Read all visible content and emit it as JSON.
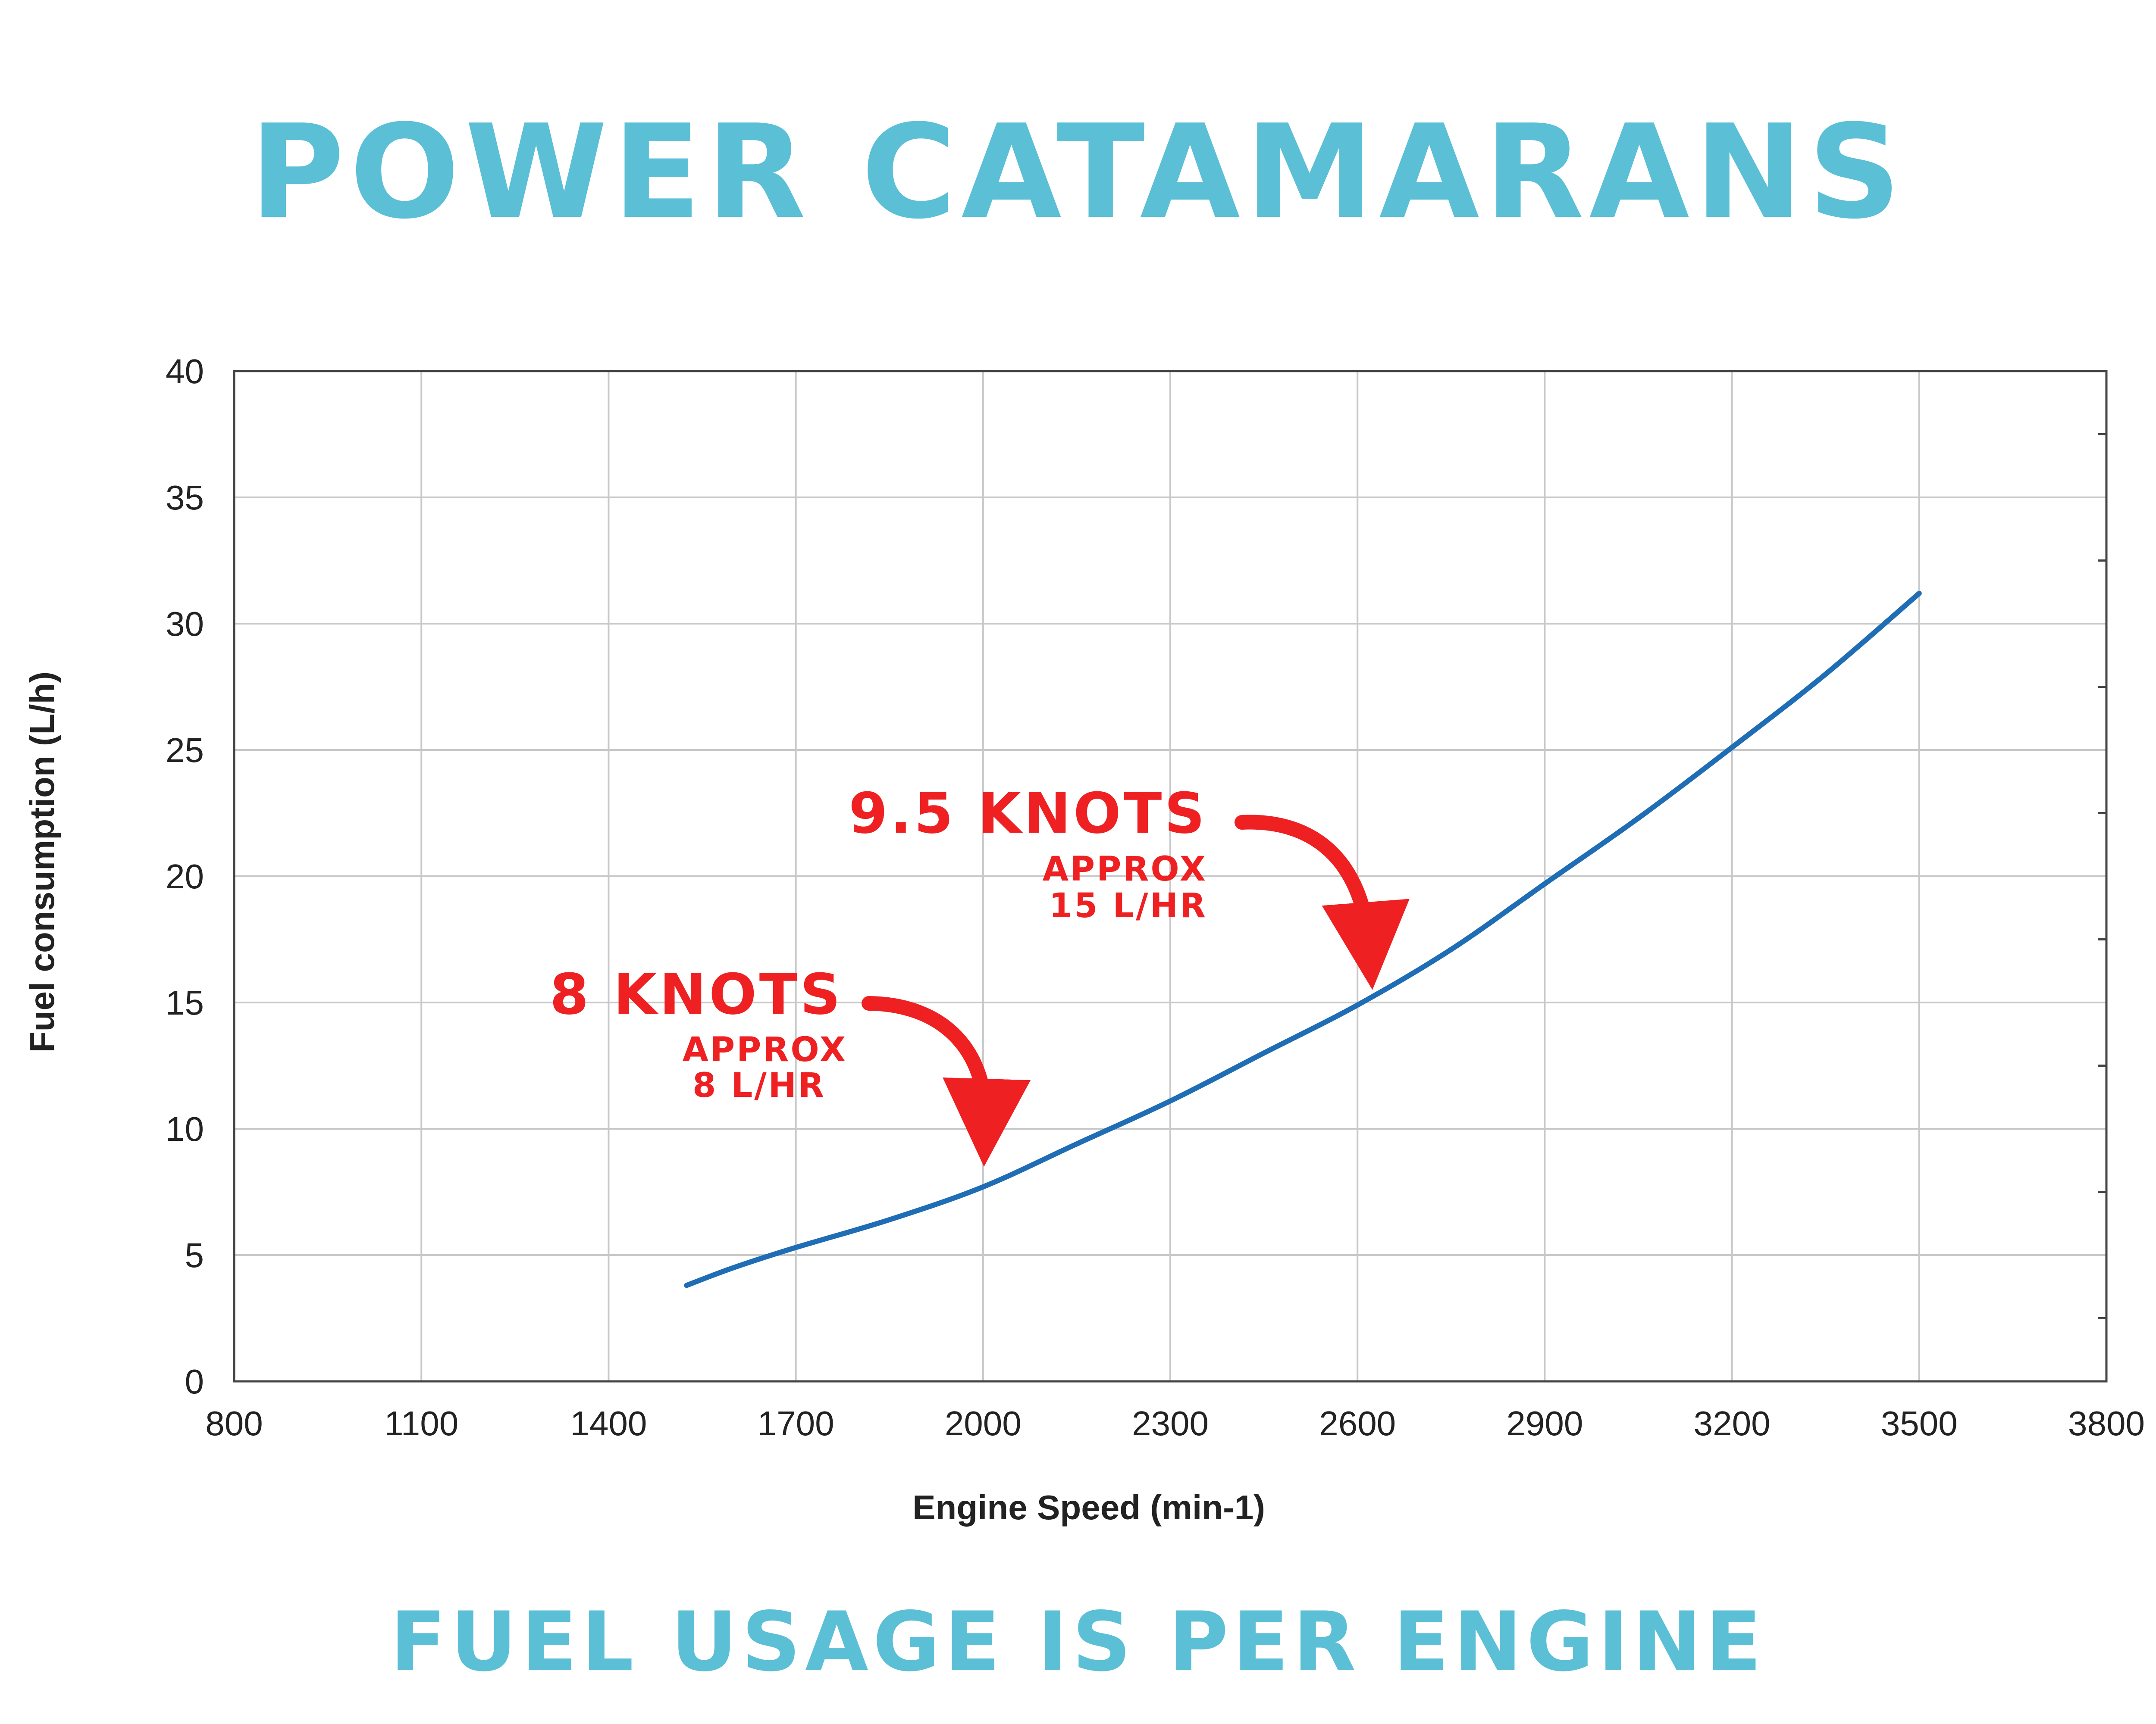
{
  "header": {
    "title": "POWER CATAMARANS"
  },
  "footer": {
    "text": "FUEL USAGE IS PER ENGINE"
  },
  "colors": {
    "title": "#5bbfd6",
    "line": "#1f6db5",
    "annotation": "#ee2022",
    "grid": "#c8c8c8"
  },
  "chart_data": {
    "type": "line",
    "title": "",
    "xlabel": "Engine Speed (min-1)",
    "ylabel": "Fuel consumption (L/h)",
    "xlim": [
      800,
      3800
    ],
    "ylim": [
      0,
      40
    ],
    "x_ticks": [
      800,
      1100,
      1400,
      1700,
      2000,
      2300,
      2600,
      2900,
      3200,
      3500,
      3800
    ],
    "y_ticks": [
      0,
      5,
      10,
      15,
      20,
      25,
      30,
      35,
      40
    ],
    "grid": true,
    "series": [
      {
        "x": [
          1525,
          1600,
          1700,
          1850,
          2000,
          2150,
          2300,
          2450,
          2600,
          2750,
          2900,
          3050,
          3200,
          3350,
          3500
        ],
        "y": [
          3.8,
          4.5,
          5.3,
          6.4,
          7.7,
          9.4,
          11.1,
          13.0,
          14.9,
          17.1,
          19.7,
          22.3,
          25.1,
          28.0,
          31.2
        ]
      }
    ],
    "annotations": [
      {
        "label": "9.5 KNOTS",
        "sub1": "APPROX",
        "sub2": "15 L/HR",
        "x": 2600,
        "y": 15
      },
      {
        "label": "8 KNOTS",
        "sub1": "APPROX",
        "sub2": "8 L/HR",
        "x": 2000,
        "y": 8
      }
    ]
  }
}
